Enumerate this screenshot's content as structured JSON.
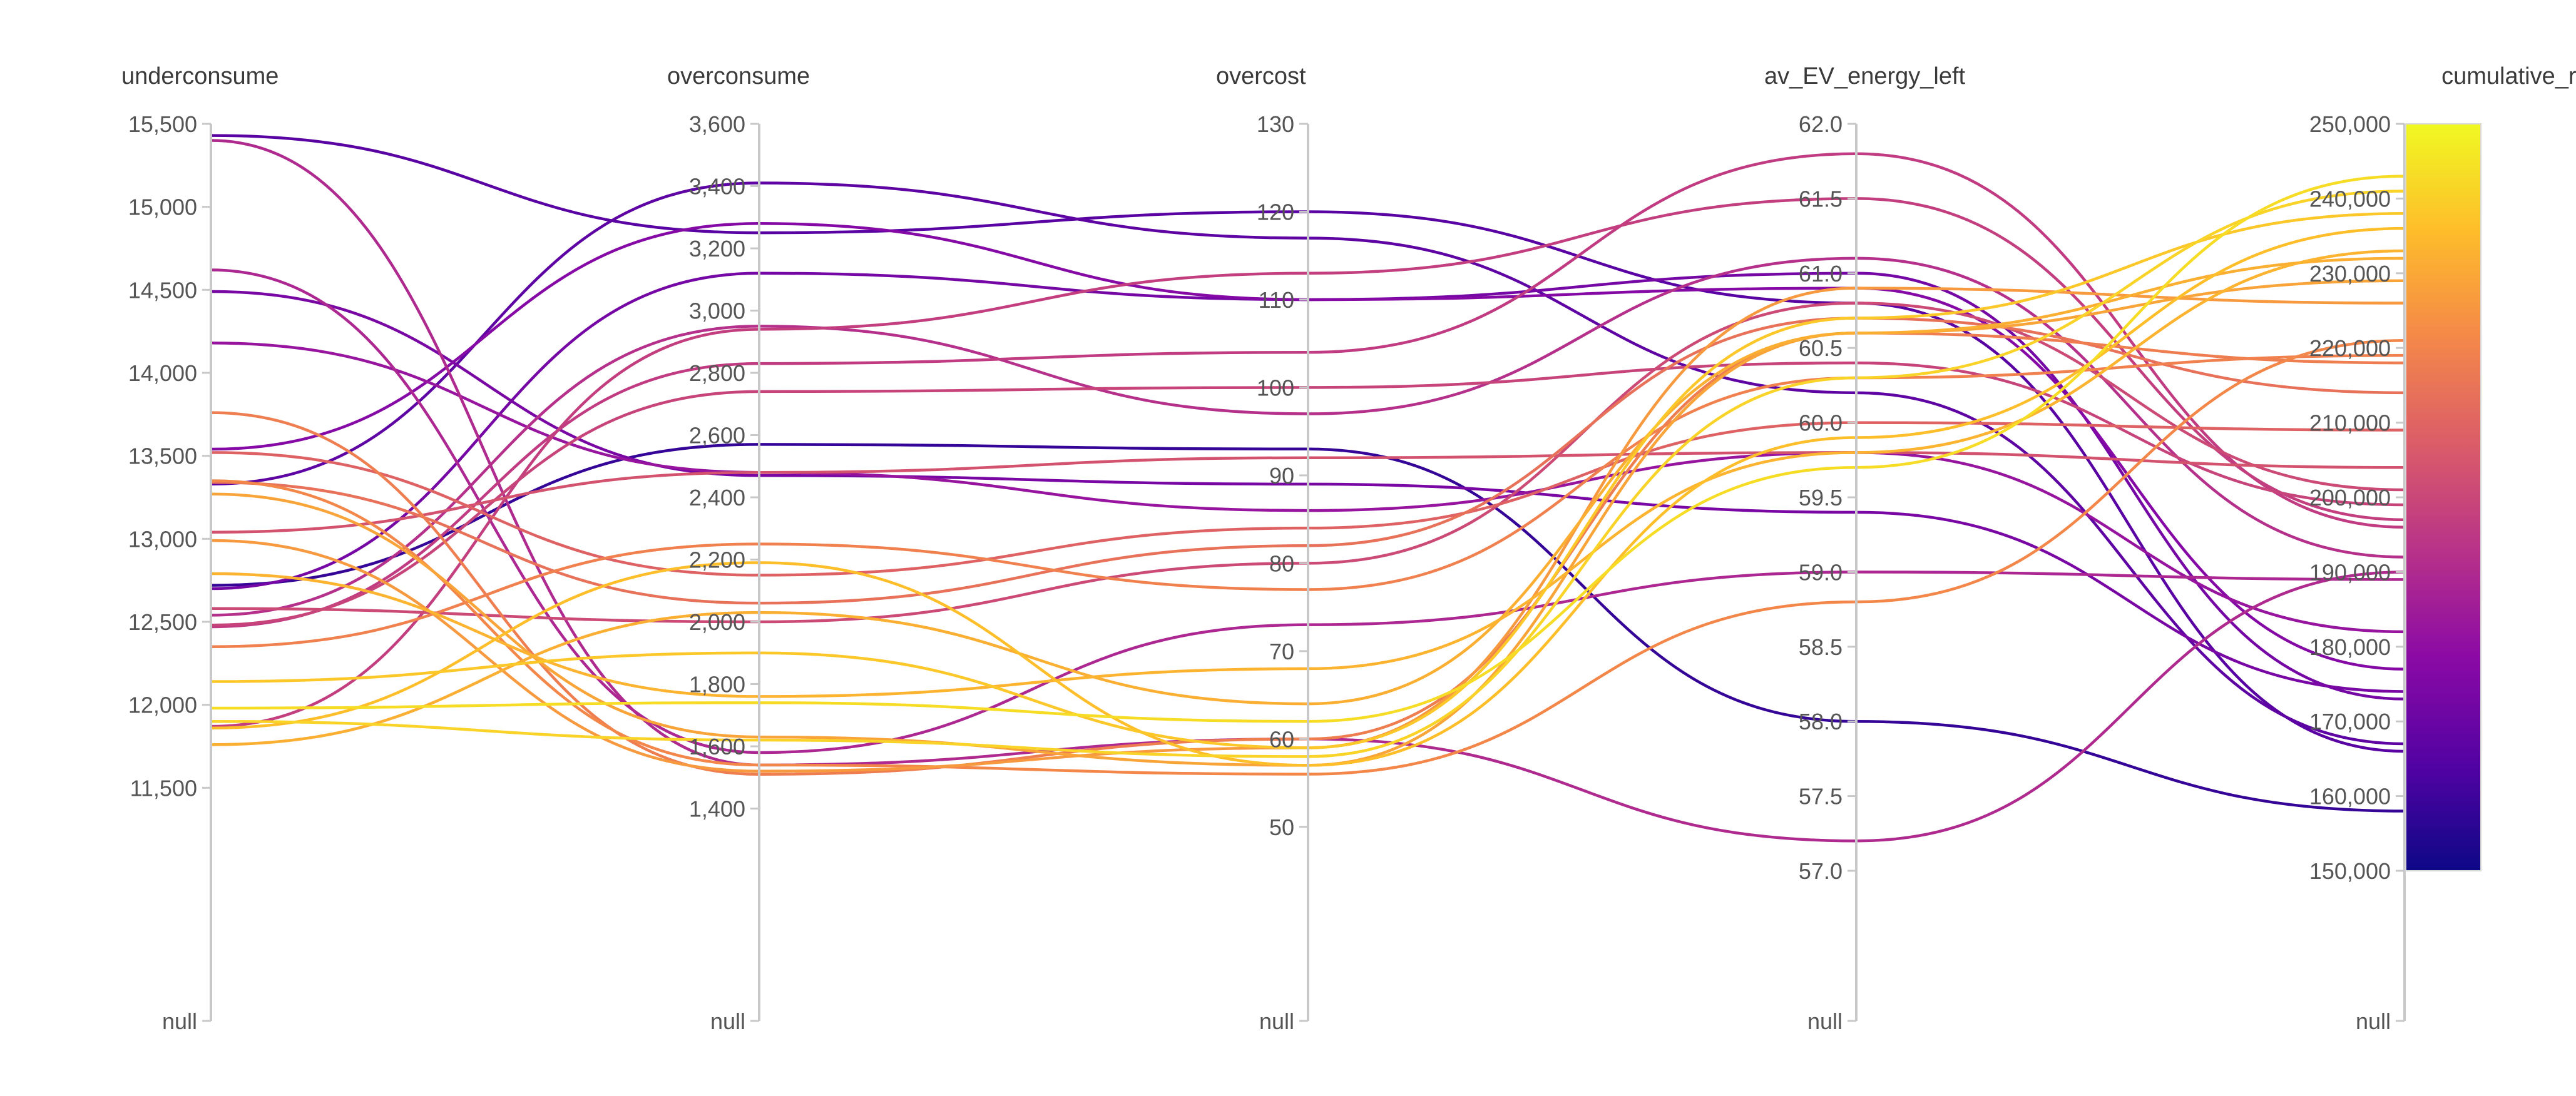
{
  "chart_data": {
    "type": "parallel_coordinates",
    "null_label": "null",
    "axes": [
      {
        "key": "underconsume",
        "label": "underconsume",
        "range": [
          11000,
          15500
        ],
        "ticks": [
          11500,
          12000,
          12500,
          13000,
          13500,
          14000,
          14500,
          15000,
          15500
        ],
        "tick_labels": [
          "11,500",
          "12,000",
          "12,500",
          "13,000",
          "13,500",
          "14,000",
          "14,500",
          "15,000",
          "15,500"
        ]
      },
      {
        "key": "overconsume",
        "label": "overconsume",
        "range": [
          1200,
          3600
        ],
        "ticks": [
          1400,
          1600,
          1800,
          2000,
          2200,
          2400,
          2600,
          2800,
          3000,
          3200,
          3400,
          3600
        ],
        "tick_labels": [
          "1,400",
          "1,600",
          "1,800",
          "2,000",
          "2,200",
          "2,400",
          "2,600",
          "2,800",
          "3,000",
          "3,200",
          "3,400",
          "3,600"
        ]
      },
      {
        "key": "overcost",
        "label": "overcost",
        "range": [
          45,
          130
        ],
        "ticks": [
          50,
          60,
          70,
          80,
          90,
          100,
          110,
          120,
          130
        ],
        "tick_labels": [
          "50",
          "60",
          "70",
          "80",
          "90",
          "100",
          "110",
          "120",
          "130"
        ]
      },
      {
        "key": "av_EV_energy_left",
        "label": "av_EV_energy_left",
        "range": [
          57,
          62
        ],
        "ticks": [
          57.0,
          57.5,
          58.0,
          58.5,
          59.0,
          59.5,
          60.0,
          60.5,
          61.0,
          61.5,
          62.0
        ],
        "tick_labels": [
          "57.0",
          "57.5",
          "58.0",
          "58.5",
          "59.0",
          "59.5",
          "60.0",
          "60.5",
          "61.0",
          "61.5",
          "62.0"
        ]
      },
      {
        "key": "cumulative_reward",
        "label": "cumulative_reward",
        "range": [
          150000,
          250000
        ],
        "ticks": [
          150000,
          160000,
          170000,
          180000,
          190000,
          200000,
          210000,
          220000,
          230000,
          240000,
          250000
        ],
        "tick_labels": [
          "150,000",
          "160,000",
          "170,000",
          "180,000",
          "190,000",
          "200,000",
          "210,000",
          "220,000",
          "230,000",
          "240,000",
          "250,000"
        ]
      }
    ],
    "colorscale": {
      "type": "plasma",
      "min": 150000,
      "max": 250000,
      "stops": [
        "#0d0887",
        "#5302a3",
        "#8b0aa5",
        "#b83289",
        "#db5c68",
        "#f48849",
        "#febd2a",
        "#f0f921"
      ]
    },
    "rows": [
      [
        15430,
        3250,
        120,
        60.8,
        166000
      ],
      [
        13330,
        3410,
        117,
        60.2,
        167000
      ],
      [
        12720,
        2570,
        93,
        58.0,
        158000
      ],
      [
        12700,
        3120,
        110,
        61.0,
        173000
      ],
      [
        13540,
        3280,
        110,
        60.9,
        177000
      ],
      [
        14490,
        2470,
        89,
        59.4,
        174000
      ],
      [
        14180,
        2480,
        86,
        59.8,
        182000
      ],
      [
        15400,
        1540,
        60,
        57.2,
        190000
      ],
      [
        14620,
        1580,
        73,
        59.0,
        189000
      ],
      [
        12540,
        2950,
        97,
        61.1,
        192000
      ],
      [
        11870,
        2940,
        113,
        61.5,
        197000
      ],
      [
        12470,
        2830,
        104,
        61.8,
        196000
      ],
      [
        12480,
        2740,
        100,
        60.4,
        199000
      ],
      [
        13040,
        2480,
        92,
        59.8,
        204000
      ],
      [
        12580,
        2000,
        80,
        60.8,
        201000
      ],
      [
        13520,
        2150,
        84,
        60.0,
        209000
      ],
      [
        13340,
        2060,
        82,
        60.7,
        214000
      ],
      [
        13760,
        1510,
        60,
        60.6,
        218000
      ],
      [
        13350,
        1540,
        56,
        58.8,
        221000
      ],
      [
        12990,
        1520,
        59,
        60.9,
        226000
      ],
      [
        12350,
        2250,
        77,
        60.3,
        219000
      ],
      [
        13270,
        1630,
        57,
        60.6,
        229000
      ],
      [
        12790,
        1760,
        68,
        59.8,
        233000
      ],
      [
        11860,
        2190,
        57,
        59.9,
        236000
      ],
      [
        11760,
        2030,
        64,
        60.6,
        232000
      ],
      [
        12140,
        1900,
        59,
        60.7,
        238000
      ],
      [
        11980,
        1740,
        62,
        59.7,
        243000
      ],
      [
        11900,
        1620,
        58,
        60.3,
        241000
      ]
    ]
  }
}
